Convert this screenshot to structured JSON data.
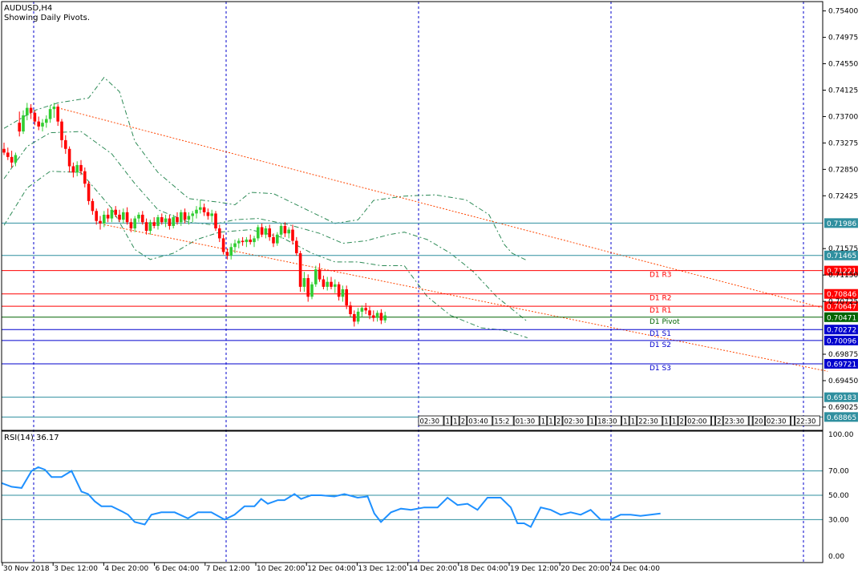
{
  "chart_data": {
    "type": "candlestick",
    "symbol_title": "AUDUSD,H4",
    "subtitle": "Showing Daily Pivots.",
    "colors": {
      "bull": "#32cd32",
      "bear": "#ff0000",
      "grid_v": "#0000cd",
      "bollinger": "#2e8b57",
      "trend": "#ff4500",
      "rsi": "#1e90ff",
      "level_teal": "#2f8f9f",
      "level_red": "#ff0000",
      "level_blue": "#0000cd",
      "level_green": "#006400"
    },
    "price_axis": {
      "ylim": [
        0.6865,
        0.7555
      ],
      "ticks": [
        "0.75400",
        "0.74975",
        "0.74550",
        "0.74125",
        "0.73700",
        "0.73275",
        "0.72850",
        "0.72425",
        "0.71575",
        "0.71150",
        "0.70725",
        "0.69875",
        "0.69450",
        "0.69025"
      ]
    },
    "x_axis_labels": [
      "30 Nov 2018",
      "3 Dec 12:00",
      "4 Dec 20:00",
      "6 Dec 04:00",
      "7 Dec 12:00",
      "10 Dec 20:00",
      "12 Dec 04:00",
      "13 Dec 12:00",
      "14 Dec 20:00",
      "18 Dec 04:00",
      "19 Dec 12:00",
      "20 Dec 20:00",
      "24 Dec 04:00"
    ],
    "levels": [
      {
        "price": 0.71986,
        "tag": "0.71986",
        "label": "",
        "color": "level_teal"
      },
      {
        "price": 0.71465,
        "tag": "0.71465",
        "label": "",
        "color": "level_teal"
      },
      {
        "price": 0.71221,
        "tag": "0.71221",
        "label": "D1 R3",
        "color": "level_red"
      },
      {
        "price": 0.70846,
        "tag": "0.70846",
        "label": "D1 R2",
        "color": "level_red"
      },
      {
        "price": 0.70647,
        "tag": "0.70647",
        "label": "D1 R1",
        "color": "level_red"
      },
      {
        "price": 0.70471,
        "tag": "0.70471",
        "label": "D1 Pivot",
        "color": "level_green"
      },
      {
        "price": 0.70272,
        "tag": "0.70272",
        "label": "D1 S1",
        "color": "level_blue"
      },
      {
        "price": 0.70096,
        "tag": "0.70096",
        "label": "D1 S2",
        "color": "level_blue"
      },
      {
        "price": 0.69721,
        "tag": "0.69721",
        "label": "D1 S3",
        "color": "level_blue"
      },
      {
        "price": 0.69183,
        "tag": "0.69183",
        "label": "",
        "color": "level_teal"
      },
      {
        "price": 0.68865,
        "tag": "0.68865",
        "label": "",
        "color": "level_teal"
      }
    ],
    "session_tags": [
      "02:30",
      "1",
      "1",
      "2",
      "03:40",
      "15:2",
      "01:30",
      "1",
      "1",
      "2",
      "02:30",
      "1",
      "18:30",
      "1",
      "1",
      "22:30",
      "1",
      "1",
      "2",
      "02:00",
      "",
      "2",
      "23:30",
      "",
      "20",
      "02:30",
      "",
      "22:30"
    ],
    "candles": [
      [
        0.7318,
        0.7328,
        0.7308,
        0.7312
      ],
      [
        0.7312,
        0.732,
        0.73,
        0.7305
      ],
      [
        0.7305,
        0.7315,
        0.7288,
        0.7296
      ],
      [
        0.7296,
        0.7312,
        0.729,
        0.7308
      ],
      [
        0.736,
        0.7378,
        0.7338,
        0.7346
      ],
      [
        0.7346,
        0.738,
        0.7342,
        0.7372
      ],
      [
        0.7372,
        0.7392,
        0.7364,
        0.7384
      ],
      [
        0.7384,
        0.739,
        0.7366,
        0.7376
      ],
      [
        0.7376,
        0.738,
        0.7356,
        0.7362
      ],
      [
        0.7362,
        0.737,
        0.7348,
        0.7354
      ],
      [
        0.7354,
        0.7366,
        0.7346,
        0.736
      ],
      [
        0.736,
        0.7372,
        0.7352,
        0.7366
      ],
      [
        0.7366,
        0.7388,
        0.736,
        0.7382
      ],
      [
        0.7382,
        0.7392,
        0.7368,
        0.7386
      ],
      [
        0.7386,
        0.739,
        0.7355,
        0.7362
      ],
      [
        0.7362,
        0.7366,
        0.732,
        0.7332
      ],
      [
        0.7332,
        0.734,
        0.731,
        0.7318
      ],
      [
        0.7318,
        0.7322,
        0.728,
        0.729
      ],
      [
        0.729,
        0.7296,
        0.7272,
        0.728
      ],
      [
        0.728,
        0.7298,
        0.7274,
        0.7292
      ],
      [
        0.7292,
        0.73,
        0.7276,
        0.7282
      ],
      [
        0.7282,
        0.7288,
        0.7256,
        0.7262
      ],
      [
        0.7262,
        0.7266,
        0.7228,
        0.7234
      ],
      [
        0.7234,
        0.7238,
        0.7212,
        0.7218
      ],
      [
        0.7218,
        0.7222,
        0.7196,
        0.7202
      ],
      [
        0.7202,
        0.721,
        0.7188,
        0.7198
      ],
      [
        0.7198,
        0.7218,
        0.7192,
        0.7212
      ],
      [
        0.7212,
        0.7222,
        0.72,
        0.7206
      ],
      [
        0.7206,
        0.7224,
        0.72,
        0.722
      ],
      [
        0.722,
        0.7226,
        0.7208,
        0.7212
      ],
      [
        0.7212,
        0.722,
        0.72,
        0.7204
      ],
      [
        0.7204,
        0.7222,
        0.7198,
        0.7216
      ],
      [
        0.7216,
        0.7224,
        0.7196,
        0.72
      ],
      [
        0.72,
        0.7206,
        0.7184,
        0.719
      ],
      [
        0.719,
        0.721,
        0.7184,
        0.7206
      ],
      [
        0.7206,
        0.7216,
        0.72,
        0.7212
      ],
      [
        0.7212,
        0.7218,
        0.7196,
        0.72
      ],
      [
        0.72,
        0.7206,
        0.718,
        0.7186
      ],
      [
        0.7186,
        0.7204,
        0.718,
        0.72
      ],
      [
        0.72,
        0.7208,
        0.719,
        0.7194
      ],
      [
        0.7194,
        0.7212,
        0.7188,
        0.7208
      ],
      [
        0.7208,
        0.7214,
        0.7196,
        0.72
      ],
      [
        0.72,
        0.7212,
        0.7192,
        0.7206
      ],
      [
        0.7206,
        0.7212,
        0.7188,
        0.7194
      ],
      [
        0.7194,
        0.7212,
        0.719,
        0.7208
      ],
      [
        0.7208,
        0.7216,
        0.7196,
        0.72
      ],
      [
        0.72,
        0.722,
        0.7194,
        0.7216
      ],
      [
        0.7216,
        0.7222,
        0.7198,
        0.7204
      ],
      [
        0.7204,
        0.7216,
        0.7196,
        0.721
      ],
      [
        0.721,
        0.7218,
        0.72,
        0.7214
      ],
      [
        0.7214,
        0.7226,
        0.7206,
        0.722
      ],
      [
        0.722,
        0.7236,
        0.7214,
        0.7224
      ],
      [
        0.7224,
        0.723,
        0.721,
        0.7216
      ],
      [
        0.7216,
        0.7222,
        0.7204,
        0.721
      ],
      [
        0.721,
        0.722,
        0.72,
        0.7214
      ],
      [
        0.7214,
        0.7218,
        0.7186,
        0.719
      ],
      [
        0.719,
        0.7196,
        0.7168,
        0.7174
      ],
      [
        0.7174,
        0.718,
        0.7148,
        0.7152
      ],
      [
        0.7152,
        0.7158,
        0.714,
        0.7146
      ],
      [
        0.7146,
        0.7166,
        0.714,
        0.716
      ],
      [
        0.716,
        0.7172,
        0.715,
        0.7166
      ],
      [
        0.7166,
        0.7174,
        0.7158,
        0.717
      ],
      [
        0.717,
        0.7176,
        0.7162,
        0.7168
      ],
      [
        0.7168,
        0.7176,
        0.716,
        0.7172
      ],
      [
        0.7172,
        0.718,
        0.7164,
        0.7168
      ],
      [
        0.7168,
        0.7178,
        0.716,
        0.7174
      ],
      [
        0.7174,
        0.7196,
        0.717,
        0.7192
      ],
      [
        0.7192,
        0.7198,
        0.7176,
        0.718
      ],
      [
        0.718,
        0.7194,
        0.7174,
        0.719
      ],
      [
        0.719,
        0.7196,
        0.717,
        0.7176
      ],
      [
        0.7176,
        0.7182,
        0.716,
        0.7166
      ],
      [
        0.7166,
        0.7184,
        0.7162,
        0.718
      ],
      [
        0.718,
        0.7198,
        0.7174,
        0.7194
      ],
      [
        0.7194,
        0.72,
        0.7176,
        0.7182
      ],
      [
        0.7182,
        0.7192,
        0.7174,
        0.7188
      ],
      [
        0.7188,
        0.7196,
        0.7164,
        0.717
      ],
      [
        0.717,
        0.7176,
        0.7146,
        0.715
      ],
      [
        0.715,
        0.7154,
        0.7088,
        0.7096
      ],
      [
        0.7096,
        0.712,
        0.7088,
        0.711
      ],
      [
        0.711,
        0.7116,
        0.7072,
        0.708
      ],
      [
        0.708,
        0.7104,
        0.7076,
        0.71
      ],
      [
        0.71,
        0.713,
        0.7096,
        0.7124
      ],
      [
        0.7124,
        0.7134,
        0.7104,
        0.7108
      ],
      [
        0.7108,
        0.7114,
        0.7092,
        0.7096
      ],
      [
        0.7096,
        0.7112,
        0.709,
        0.7104
      ],
      [
        0.7104,
        0.7112,
        0.7092,
        0.7096
      ],
      [
        0.7096,
        0.7108,
        0.7086,
        0.71
      ],
      [
        0.71,
        0.7104,
        0.7074,
        0.708
      ],
      [
        0.708,
        0.7098,
        0.7072,
        0.7092
      ],
      [
        0.7092,
        0.7098,
        0.706,
        0.7066
      ],
      [
        0.7066,
        0.7072,
        0.7048,
        0.7052
      ],
      [
        0.7052,
        0.7058,
        0.7032,
        0.704
      ],
      [
        0.704,
        0.7062,
        0.7036,
        0.7056
      ],
      [
        0.7056,
        0.7066,
        0.7048,
        0.7062
      ],
      [
        0.7062,
        0.707,
        0.7052,
        0.7058
      ],
      [
        0.7058,
        0.7064,
        0.7044,
        0.705
      ],
      [
        0.705,
        0.7058,
        0.704,
        0.7046
      ],
      [
        0.7046,
        0.7058,
        0.704,
        0.7054
      ],
      [
        0.7054,
        0.706,
        0.7036,
        0.7042
      ],
      [
        0.7042,
        0.7056,
        0.7038,
        0.705
      ]
    ],
    "bollinger_upper": [
      [
        0,
        0.7351
      ],
      [
        8,
        0.738
      ],
      [
        14,
        0.7392
      ],
      [
        22,
        0.74
      ],
      [
        26,
        0.7433
      ],
      [
        30,
        0.741
      ],
      [
        34,
        0.733
      ],
      [
        40,
        0.728
      ],
      [
        48,
        0.7238
      ],
      [
        56,
        0.7232
      ],
      [
        60,
        0.7228
      ],
      [
        64,
        0.7248
      ],
      [
        70,
        0.7246
      ],
      [
        78,
        0.7222
      ],
      [
        86,
        0.7198
      ],
      [
        92,
        0.7204
      ],
      [
        96,
        0.7235
      ],
      [
        104,
        0.7242
      ],
      [
        112,
        0.7244
      ],
      [
        120,
        0.7236
      ],
      [
        126,
        0.7212
      ],
      [
        130,
        0.7164
      ],
      [
        132,
        0.715
      ],
      [
        136,
        0.7138
      ]
    ],
    "bollinger_mid": [
      [
        0,
        0.727
      ],
      [
        6,
        0.7322
      ],
      [
        12,
        0.7344
      ],
      [
        20,
        0.7346
      ],
      [
        28,
        0.731
      ],
      [
        34,
        0.7262
      ],
      [
        40,
        0.722
      ],
      [
        48,
        0.72
      ],
      [
        54,
        0.7196
      ],
      [
        60,
        0.7204
      ],
      [
        66,
        0.7206
      ],
      [
        74,
        0.7196
      ],
      [
        82,
        0.7182
      ],
      [
        88,
        0.7166
      ],
      [
        94,
        0.717
      ],
      [
        100,
        0.718
      ],
      [
        104,
        0.7184
      ],
      [
        110,
        0.7172
      ],
      [
        116,
        0.715
      ],
      [
        122,
        0.712
      ],
      [
        128,
        0.708
      ],
      [
        136,
        0.704
      ]
    ],
    "bollinger_lower": [
      [
        0,
        0.7195
      ],
      [
        6,
        0.7255
      ],
      [
        12,
        0.7282
      ],
      [
        20,
        0.728
      ],
      [
        28,
        0.7222
      ],
      [
        34,
        0.7156
      ],
      [
        38,
        0.714
      ],
      [
        44,
        0.715
      ],
      [
        50,
        0.7172
      ],
      [
        56,
        0.7184
      ],
      [
        64,
        0.7188
      ],
      [
        72,
        0.7176
      ],
      [
        80,
        0.715
      ],
      [
        86,
        0.7136
      ],
      [
        92,
        0.7136
      ],
      [
        98,
        0.713
      ],
      [
        104,
        0.713
      ],
      [
        110,
        0.708
      ],
      [
        116,
        0.705
      ],
      [
        124,
        0.703
      ],
      [
        130,
        0.7026
      ],
      [
        136,
        0.7014
      ]
    ],
    "trend_lines": [
      {
        "from": [
          14,
          0.7384
        ],
        "to": [
          214,
          0.706
        ]
      },
      {
        "from": [
          26,
          0.7196
        ],
        "to": [
          214,
          0.696
        ]
      }
    ],
    "rsi": {
      "label": "RSI(14) 36.17",
      "ylim": [
        0,
        100
      ],
      "ticks": [
        {
          "value": 100,
          "label": "100.00"
        },
        {
          "value": 70,
          "label": "70.00"
        },
        {
          "value": 50,
          "label": "50.00"
        },
        {
          "value": 30,
          "label": "30.00"
        },
        {
          "value": 0,
          "label": "0.00"
        }
      ],
      "values": [
        [
          0,
          60
        ],
        [
          3,
          57
        ],
        [
          6,
          56
        ],
        [
          9,
          70
        ],
        [
          11,
          73
        ],
        [
          13,
          71
        ],
        [
          15,
          65
        ],
        [
          18,
          65
        ],
        [
          21,
          70
        ],
        [
          24,
          53
        ],
        [
          26,
          51
        ],
        [
          28,
          45
        ],
        [
          30,
          41
        ],
        [
          33,
          41
        ],
        [
          36,
          37
        ],
        [
          38,
          34
        ],
        [
          40,
          28
        ],
        [
          43,
          26
        ],
        [
          45,
          34
        ],
        [
          48,
          36
        ],
        [
          52,
          36
        ],
        [
          56,
          31
        ],
        [
          59,
          36
        ],
        [
          63,
          36
        ],
        [
          67,
          30
        ],
        [
          70,
          34
        ],
        [
          73,
          41
        ],
        [
          76,
          41
        ],
        [
          78,
          47
        ],
        [
          80,
          43
        ],
        [
          83,
          46
        ],
        [
          85,
          46
        ],
        [
          88,
          51
        ],
        [
          90,
          47
        ],
        [
          93,
          50
        ],
        [
          96,
          50
        ],
        [
          100,
          49
        ],
        [
          103,
          51
        ],
        [
          107,
          48
        ],
        [
          110,
          49
        ],
        [
          112,
          35
        ],
        [
          114,
          28
        ],
        [
          117,
          36
        ],
        [
          120,
          39
        ],
        [
          123,
          38
        ],
        [
          127,
          40
        ],
        [
          131,
          40
        ],
        [
          134,
          48
        ],
        [
          137,
          42
        ],
        [
          140,
          43
        ],
        [
          143,
          38
        ],
        [
          146,
          48
        ],
        [
          150,
          48
        ],
        [
          153,
          40
        ],
        [
          155,
          27
        ],
        [
          157,
          27
        ],
        [
          159,
          24
        ],
        [
          162,
          40
        ],
        [
          165,
          38
        ],
        [
          168,
          34
        ],
        [
          171,
          36
        ],
        [
          174,
          34
        ],
        [
          177,
          38
        ],
        [
          180,
          30
        ],
        [
          183,
          30
        ],
        [
          186,
          34
        ],
        [
          189,
          34
        ],
        [
          192,
          33
        ],
        [
          195,
          34
        ],
        [
          198,
          35
        ]
      ]
    }
  }
}
